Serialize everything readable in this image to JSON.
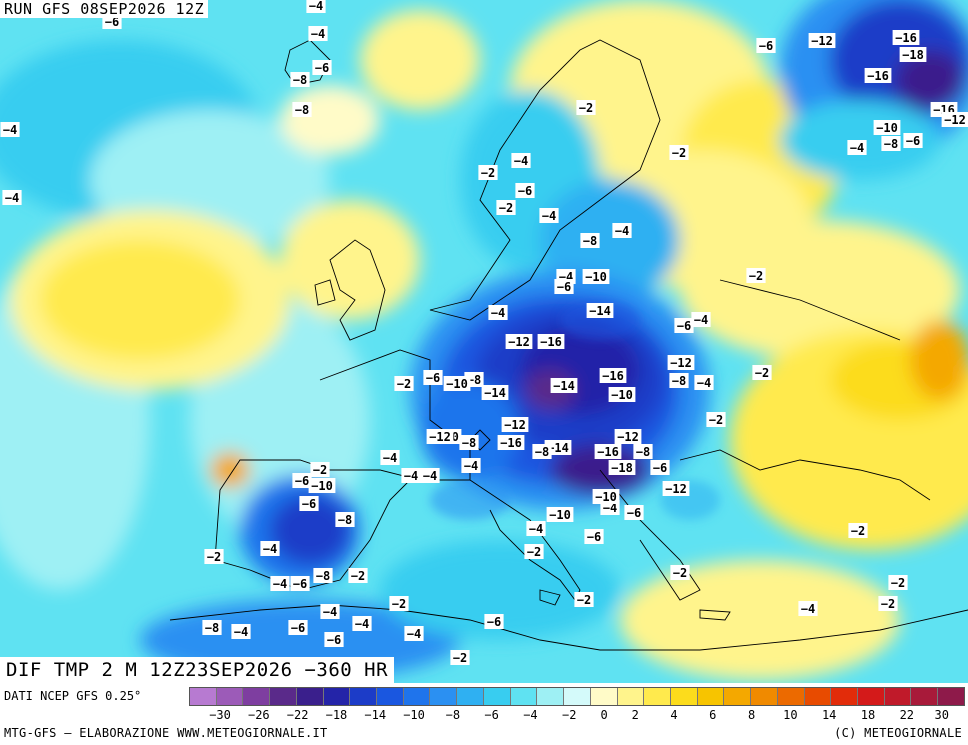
{
  "header": {
    "run": "RUN GFS 08SEP2026 12Z",
    "validity": "DIF TMP 2 M 12Z23SEP2026 −360 HR"
  },
  "footer": {
    "source": "DATI NCEP GFS 0.25°",
    "left": "MTG-GFS — ELABORAZIONE WWW.METEOGIORNALE.IT",
    "right": "(C) METEOGIORNALE"
  },
  "legend": {
    "colors": [
      "#b77ad1",
      "#9c5bb8",
      "#7e3ea0",
      "#5a2a8a",
      "#3a1f8c",
      "#2424a8",
      "#1c3cc8",
      "#1a57e0",
      "#1f74ec",
      "#2b90f2",
      "#2fb0f2",
      "#38cdf0",
      "#5fe2f2",
      "#9ef0f4",
      "#d4fafa",
      "#fffbc8",
      "#fff48c",
      "#ffea4d",
      "#fcdc1c",
      "#f7c400",
      "#f4a800",
      "#f08a00",
      "#ec6a00",
      "#e84b00",
      "#e22c0a",
      "#d41a1a",
      "#c01a2a",
      "#a81a3a",
      "#8e1a4a"
    ],
    "ticks": [
      "−30",
      "−26",
      "−22",
      "−18",
      "−14",
      "−10",
      "−8",
      "−6",
      "−4",
      "−2",
      "0",
      "2",
      "4",
      "6",
      "8",
      "10",
      "14",
      "18",
      "22",
      "30"
    ]
  },
  "map_labels": [
    "-6",
    "-4",
    "-4",
    "-6",
    "-8",
    "-8",
    "-4",
    "-4",
    "-6",
    "-12",
    "-16",
    "-18",
    "-16",
    "-16",
    "-12",
    "-10",
    "-8",
    "-6",
    "-4",
    "-2",
    "-2",
    "-4",
    "-2",
    "-6",
    "-2",
    "-4",
    "-8",
    "-4",
    "-4",
    "-10",
    "-6",
    "-2",
    "-4",
    "-14",
    "-6",
    "-4",
    "-12",
    "-16",
    "-12",
    "-8",
    "-4",
    "-2",
    "-2",
    "-6",
    "-8",
    "-10",
    "-14",
    "-14",
    "-16",
    "-10",
    "-2",
    "-4",
    "-12",
    "-10",
    "-8",
    "-12",
    "-16",
    "-14",
    "-8",
    "-12",
    "-8",
    "-16",
    "-18",
    "-6",
    "-2",
    "-6",
    "-10",
    "-4",
    "-4",
    "-4",
    "-6",
    "-8",
    "-12",
    "-4",
    "-10",
    "-6",
    "-10",
    "-4",
    "-6",
    "-4",
    "-8",
    "-2",
    "-2",
    "-4",
    "-6",
    "-8",
    "-2",
    "-2",
    "-2",
    "-2",
    "-2",
    "-2",
    "-4",
    "-6",
    "-6",
    "-4",
    "-2",
    "-4",
    "-6",
    "-4",
    "-4",
    "-2",
    "-2",
    "-2",
    "-2"
  ]
}
